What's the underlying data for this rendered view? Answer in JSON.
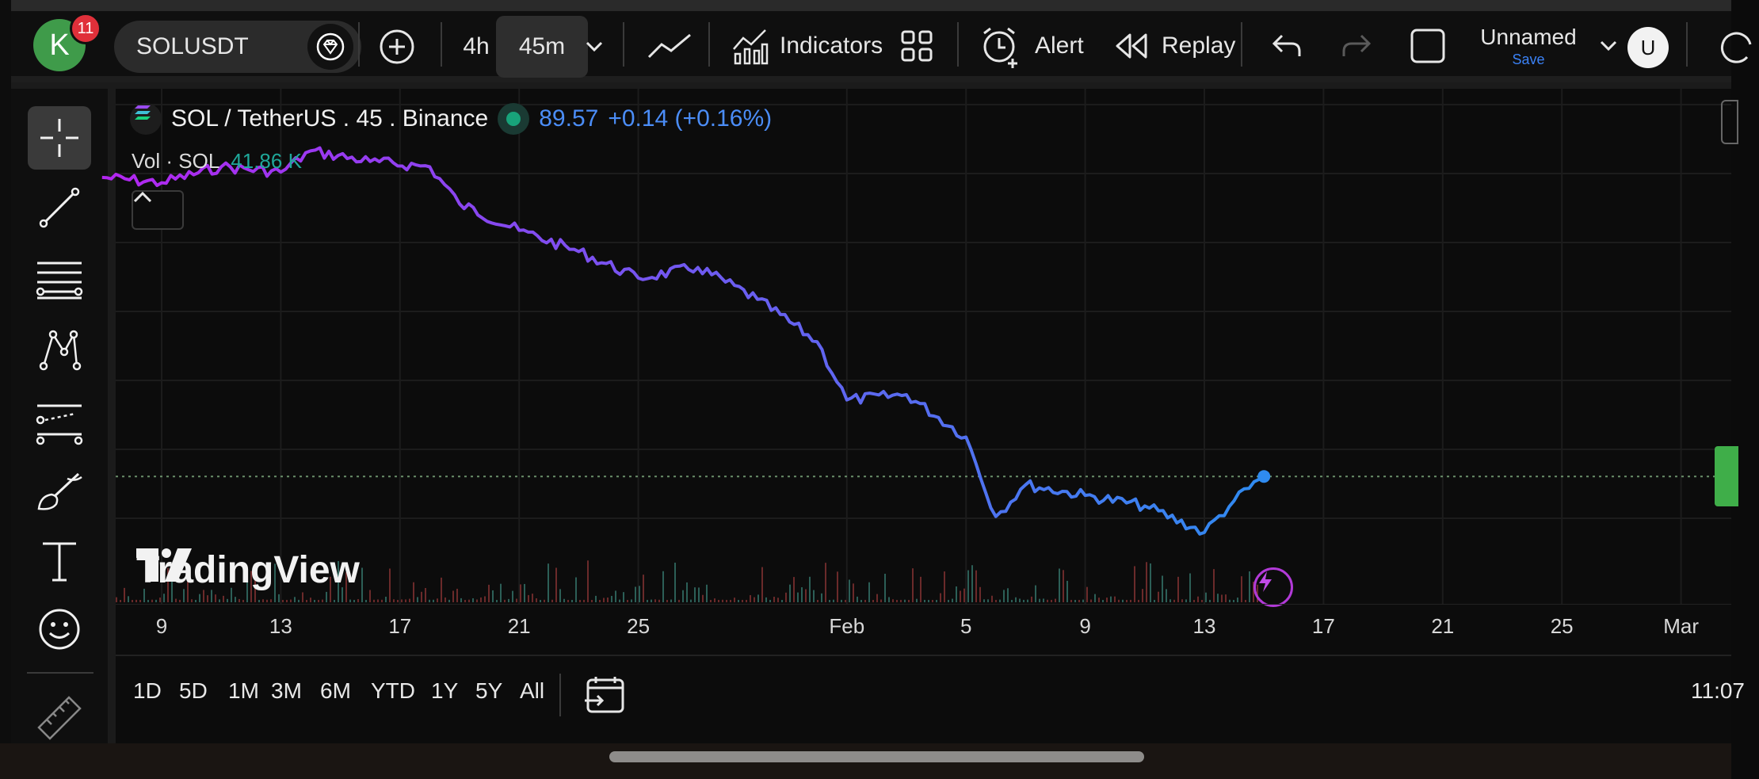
{
  "toolbar": {
    "avatar_letter": "K",
    "notification_count": "11",
    "symbol": "SOLUSDT",
    "timeframes": [
      "4h",
      "45m"
    ],
    "indicators_label": "Indicators",
    "alert_label": "Alert",
    "replay_label": "Replay",
    "layout_name": "Unnamed",
    "save_label": "Save",
    "user_initial": "U"
  },
  "legend": {
    "symbol_line": "SOL / TetherUS . 45 . Binance",
    "price": "89.57",
    "change": "+0.14 (+0.16%)",
    "volume_label": "Vol · SOL",
    "volume_value": "41.86 K"
  },
  "watermark": "TradingView",
  "range_buttons": [
    "1D",
    "5D",
    "1M",
    "3M",
    "6M",
    "YTD",
    "1Y",
    "5Y",
    "All"
  ],
  "clock": "11:07",
  "icons": {
    "avatar": "avatar-circle",
    "premium": "gem-icon",
    "add": "plus-circle-icon",
    "chart_type": "line-chart-icon",
    "indicators": "indicators-icon",
    "layout": "grid-icon",
    "alert": "alarm-plus-icon",
    "replay": "rewind-icon",
    "undo": "undo-icon",
    "redo": "redo-icon",
    "fullscreen": "square-icon",
    "dropdown": "chevron-down-icon",
    "calendar": "calendar-goto-icon",
    "bolt": "lightning-icon"
  },
  "colors": {
    "line_start": "#b326f0",
    "line_end": "#2f8bf0",
    "price_accent": "#4b8df7",
    "volume_accent": "#1fa89a",
    "live_dot": "#18a37a",
    "price_tag": "#3fae49",
    "notification": "#e0303a"
  },
  "chart_data": {
    "type": "line",
    "title": "",
    "x_ticks": [
      "9",
      "13",
      "17",
      "21",
      "25",
      "Feb",
      "5",
      "9",
      "13",
      "17",
      "21",
      "25",
      "Mar"
    ],
    "series": [
      {
        "values_approx": [
          [
            "Jan 7",
            146
          ],
          [
            "Jan 9",
            145
          ],
          [
            "Jan 11",
            148
          ],
          [
            "Jan 13",
            147
          ],
          [
            "Jan 14",
            151
          ],
          [
            "Jan 16",
            149
          ],
          [
            "Jan 18",
            148
          ],
          [
            "Jan 19",
            141
          ],
          [
            "Jan 21",
            136
          ],
          [
            "Jan 23",
            132
          ],
          [
            "Jan 25",
            127
          ],
          [
            "Jan 27",
            129
          ],
          [
            "Jan 29",
            123
          ],
          [
            "Jan 31",
            115
          ],
          [
            "Feb 1",
            104
          ],
          [
            "Feb 3",
            105
          ],
          [
            "Feb 5",
            97
          ],
          [
            "Feb 6",
            82
          ],
          [
            "Feb 7",
            88
          ],
          [
            "Feb 9",
            86
          ],
          [
            "Feb 11",
            84
          ],
          [
            "Feb 13",
            79
          ],
          [
            "Feb 14",
            85
          ],
          [
            "Feb 15",
            89.57
          ]
        ]
      }
    ],
    "last_price": 89.57,
    "grid": true,
    "legend": "top-left"
  }
}
